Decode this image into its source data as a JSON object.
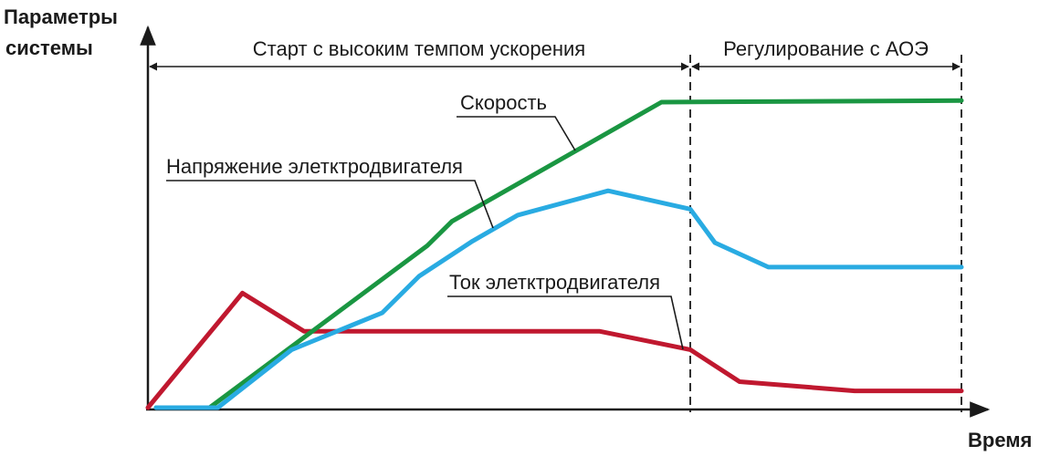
{
  "chart_data": {
    "type": "line",
    "ylabel_line1": "Параметры",
    "ylabel_line2": "системы",
    "xlabel": "Время",
    "x_ticks": false,
    "y_ticks": false,
    "xlim": [
      0,
      100
    ],
    "ylim": [
      0,
      100
    ],
    "phases": [
      {
        "label": "Старт с высоким темпом ускорения",
        "start": 0,
        "end": 66
      },
      {
        "label": "Регулирование с АОЭ",
        "start": 66,
        "end": 99
      }
    ],
    "phase_dividers": [
      66,
      99
    ],
    "series": [
      {
        "name": "Скорость",
        "color": "#1a9642",
        "points": [
          [
            1,
            0
          ],
          [
            7.5,
            0
          ],
          [
            34,
            53
          ],
          [
            37,
            61
          ],
          [
            62.5,
            100
          ],
          [
            99,
            100.5
          ]
        ]
      },
      {
        "name": "Напряжение элетктродвигателя",
        "color": "#29abe2",
        "points": [
          [
            1,
            0
          ],
          [
            8.5,
            0
          ],
          [
            17.5,
            19
          ],
          [
            28.5,
            31
          ],
          [
            33,
            43
          ],
          [
            39.5,
            54.5
          ],
          [
            45,
            63
          ],
          [
            56,
            71
          ],
          [
            66,
            65
          ],
          [
            69,
            54
          ],
          [
            75.5,
            46
          ],
          [
            99,
            46
          ]
        ]
      },
      {
        "name": "Ток элетктродвигателя",
        "color": "#c0182f",
        "points": [
          [
            0,
            0
          ],
          [
            11.5,
            37.5
          ],
          [
            19,
            25
          ],
          [
            55,
            25
          ],
          [
            66,
            19
          ],
          [
            72,
            8.5
          ],
          [
            86,
            5.5
          ],
          [
            99,
            5.5
          ]
        ]
      }
    ]
  }
}
